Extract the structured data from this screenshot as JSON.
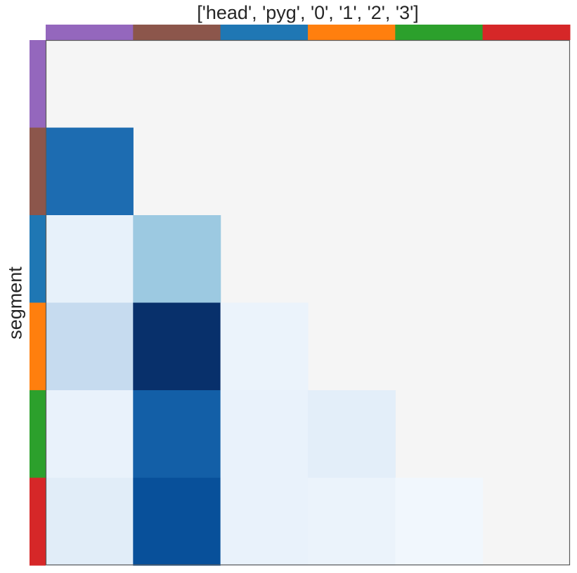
{
  "chart_data": {
    "type": "heatmap",
    "title": "['head', 'pyg', '0', '1', '2', '3']",
    "xlabel": "",
    "ylabel": "segment",
    "colormap": "Blues",
    "background_color": "#f5f5f5",
    "grid": false,
    "segments": [
      {
        "color": "#9467bd"
      },
      {
        "color": "#8c564b"
      },
      {
        "color": "#1f77b4"
      },
      {
        "color": "#ff7f0e"
      },
      {
        "color": "#2ca02c"
      },
      {
        "color": "#d62728"
      }
    ],
    "matrix": [
      [
        null,
        null,
        null,
        null,
        null,
        null
      ],
      [
        0.77,
        null,
        null,
        null,
        null,
        null
      ],
      [
        0.08,
        0.38,
        null,
        null,
        null,
        null
      ],
      [
        0.25,
        1.0,
        0.06,
        null,
        null,
        null
      ],
      [
        0.07,
        0.82,
        0.07,
        0.1,
        null,
        null
      ],
      [
        0.11,
        0.88,
        0.07,
        0.06,
        0.03,
        null
      ]
    ]
  }
}
